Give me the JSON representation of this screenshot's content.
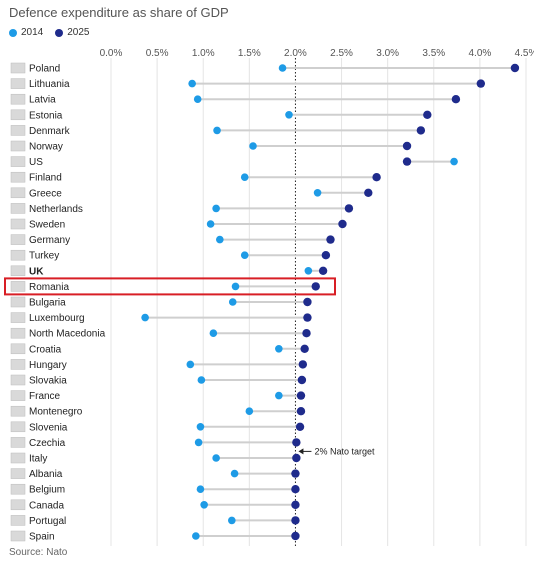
{
  "title": "Defence expenditure as share of GDP",
  "source": "Source: Nato",
  "annotation": "2% Nato target",
  "colors": {
    "y2014": "#1e9be6",
    "y2025": "#1f2b8c",
    "connector": "#cfcfcf",
    "highlight": "#d81e25"
  },
  "chart_data": {
    "type": "dot-plot",
    "title": "Defence expenditure as share of GDP",
    "xlim": [
      0,
      4.5
    ],
    "xticks": [
      0,
      0.5,
      1.0,
      1.5,
      2.0,
      2.5,
      3.0,
      3.5,
      4.0,
      4.5
    ],
    "xtick_labels": [
      "0.0%",
      "0.5%",
      "1.0%",
      "1.5%",
      "2.0%",
      "2.5%",
      "3.0%",
      "3.5%",
      "4.0%",
      "4.5%"
    ],
    "reference_line": {
      "x": 2.0,
      "label": "2% Nato target"
    },
    "legend": [
      "2014",
      "2025"
    ],
    "highlighted": "Romania",
    "bold": [
      "UK"
    ],
    "categories": [
      "Poland",
      "Lithuania",
      "Latvia",
      "Estonia",
      "Denmark",
      "Norway",
      "US",
      "Finland",
      "Greece",
      "Netherlands",
      "Sweden",
      "Germany",
      "Turkey",
      "UK",
      "Romania",
      "Bulgaria",
      "Luxembourg",
      "North Macedonia",
      "Croatia",
      "Hungary",
      "Slovakia",
      "France",
      "Montenegro",
      "Slovenia",
      "Czechia",
      "Italy",
      "Albania",
      "Belgium",
      "Canada",
      "Portugal",
      "Spain"
    ],
    "series": [
      {
        "name": "2014",
        "values": [
          1.86,
          0.88,
          0.94,
          1.93,
          1.15,
          1.54,
          3.72,
          1.45,
          2.24,
          1.14,
          1.08,
          1.18,
          1.45,
          2.14,
          1.35,
          1.32,
          0.37,
          1.11,
          1.82,
          0.86,
          0.98,
          1.82,
          1.5,
          0.97,
          0.95,
          1.14,
          1.34,
          0.97,
          1.01,
          1.31,
          0.92
        ]
      },
      {
        "name": "2025",
        "values": [
          4.38,
          4.01,
          3.74,
          3.43,
          3.36,
          3.21,
          3.21,
          2.88,
          2.79,
          2.58,
          2.51,
          2.38,
          2.33,
          2.3,
          2.22,
          2.13,
          2.13,
          2.12,
          2.1,
          2.08,
          2.07,
          2.06,
          2.06,
          2.05,
          2.01,
          2.01,
          2.0,
          2.0,
          2.0,
          2.0,
          2.0
        ]
      }
    ]
  }
}
